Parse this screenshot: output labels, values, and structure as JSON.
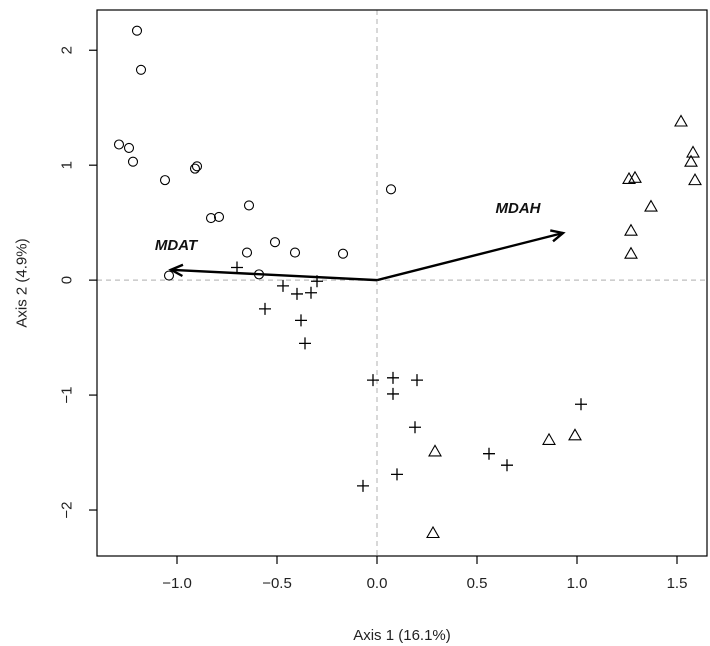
{
  "chart_data": {
    "type": "scatter",
    "title": "",
    "xlabel": "Axis 1 (16.1%)",
    "ylabel": "Axis 2 (4.9%)",
    "xlim": [
      -1.4,
      1.65
    ],
    "ylim": [
      -2.4,
      2.35
    ],
    "xticks": [
      -1.0,
      -0.5,
      0.0,
      0.5,
      1.0,
      1.5
    ],
    "xtick_labels": [
      "−1.0",
      "−0.5",
      "0.0",
      "0.5",
      "1.0",
      "1.5"
    ],
    "yticks": [
      -2,
      -1,
      0,
      1,
      2
    ],
    "ytick_labels": [
      "−2",
      "−1",
      "0",
      "1",
      "2"
    ],
    "reference_lines": {
      "x": 0,
      "y": 0,
      "style": "dashed"
    },
    "grid": false,
    "legend": "none",
    "series": [
      {
        "marker": "circle",
        "points": [
          [
            -1.2,
            2.17
          ],
          [
            -1.18,
            1.83
          ],
          [
            -1.29,
            1.18
          ],
          [
            -1.24,
            1.15
          ],
          [
            -1.22,
            1.03
          ],
          [
            -1.06,
            0.87
          ],
          [
            -0.91,
            0.97
          ],
          [
            -0.9,
            0.99
          ],
          [
            -0.83,
            0.54
          ],
          [
            -0.79,
            0.55
          ],
          [
            -0.64,
            0.65
          ],
          [
            -0.65,
            0.24
          ],
          [
            -0.51,
            0.33
          ],
          [
            -0.41,
            0.24
          ],
          [
            -0.17,
            0.23
          ],
          [
            -0.59,
            0.05
          ],
          [
            -1.04,
            0.04
          ],
          [
            0.07,
            0.79
          ]
        ]
      },
      {
        "marker": "plus",
        "points": [
          [
            -0.7,
            0.11
          ],
          [
            -0.47,
            -0.05
          ],
          [
            -0.4,
            -0.12
          ],
          [
            -0.33,
            -0.11
          ],
          [
            -0.3,
            -0.01
          ],
          [
            -0.56,
            -0.25
          ],
          [
            -0.38,
            -0.35
          ],
          [
            -0.36,
            -0.55
          ],
          [
            -0.02,
            -0.87
          ],
          [
            0.08,
            -0.85
          ],
          [
            0.2,
            -0.87
          ],
          [
            0.08,
            -0.99
          ],
          [
            0.19,
            -1.28
          ],
          [
            0.1,
            -1.69
          ],
          [
            -0.07,
            -1.79
          ],
          [
            0.56,
            -1.51
          ],
          [
            0.65,
            -1.61
          ],
          [
            1.02,
            -1.08
          ]
        ]
      },
      {
        "marker": "triangle",
        "points": [
          [
            1.52,
            1.38
          ],
          [
            1.58,
            1.11
          ],
          [
            1.57,
            1.03
          ],
          [
            1.59,
            0.87
          ],
          [
            1.26,
            0.88
          ],
          [
            1.29,
            0.89
          ],
          [
            1.37,
            0.64
          ],
          [
            1.27,
            0.43
          ],
          [
            1.27,
            0.23
          ],
          [
            0.29,
            -1.49
          ],
          [
            0.86,
            -1.39
          ],
          [
            0.99,
            -1.35
          ],
          [
            0.28,
            -2.2
          ]
        ]
      }
    ],
    "vectors": [
      {
        "label": "MDAH",
        "x": 0.93,
        "y": 0.41
      },
      {
        "label": "MDAT",
        "x": -1.03,
        "y": 0.09
      }
    ]
  }
}
